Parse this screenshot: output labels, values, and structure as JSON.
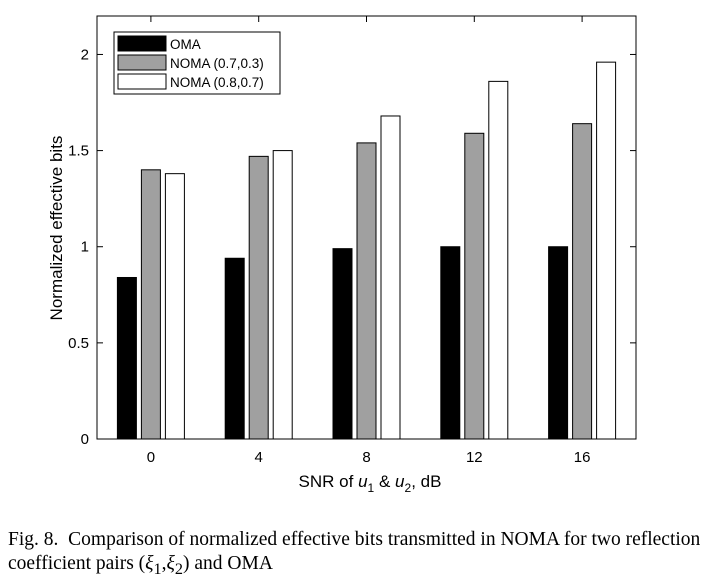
{
  "chart_data": {
    "type": "bar",
    "xlabel_parts": {
      "prefix": "SNR of ",
      "u": "u",
      "sub1": "1",
      "amp": " & ",
      "sub2": "2",
      "suffix": ", dB"
    },
    "ylabel": "Normalized effective bits",
    "categories": [
      "0",
      "4",
      "8",
      "12",
      "16"
    ],
    "ylim": [
      0,
      2.2
    ],
    "yticks": [
      0,
      0.5,
      1,
      1.5,
      2
    ],
    "ytick_labels": [
      "0",
      "0.5",
      "1",
      "1.5",
      "2"
    ],
    "grid": false,
    "legend_position": "top-left",
    "series": [
      {
        "name": "OMA",
        "color": "#000000",
        "values": [
          0.84,
          0.94,
          0.99,
          1.0,
          1.0
        ]
      },
      {
        "name": "NOMA (0.7,0.3)",
        "color": "#a0a0a0",
        "values": [
          1.4,
          1.47,
          1.54,
          1.59,
          1.64
        ]
      },
      {
        "name": "NOMA (0.8,0.7)",
        "color": "#ffffff",
        "values": [
          1.38,
          1.5,
          1.68,
          1.86,
          1.96
        ]
      }
    ]
  },
  "caption": {
    "label": "Fig. 8.",
    "text_part1": "Comparison of normalized effective bits transmitted in NOMA for two reflection coefficient pairs (",
    "xi": "ξ",
    "sub1": "1",
    "comma": ",",
    "sub2": "2",
    "text_part2": ") and OMA"
  }
}
